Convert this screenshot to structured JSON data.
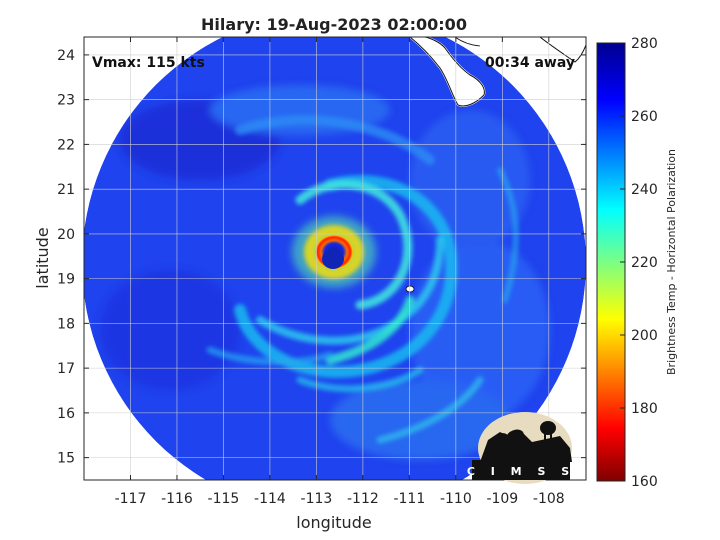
{
  "title": "Hilary: 19-Aug-2023 02:00:00",
  "vmax_label": "Vmax: 115 kts",
  "time_label": "00:34 away",
  "xlabel": "longitude",
  "ylabel": "latitude",
  "colorbar_label": "Brightness Temp - Horizontal Polarization",
  "logo_text": "CIMSS",
  "chart_data": {
    "type": "heatmap",
    "title": "Hilary: 19-Aug-2023 02:00:00",
    "xlabel": "longitude",
    "ylabel": "latitude",
    "xlim": [
      -118,
      -107.2
    ],
    "ylim": [
      14.5,
      24.4
    ],
    "x_ticks": [
      -117,
      -116,
      -115,
      -114,
      -113,
      -112,
      -111,
      -110,
      -109,
      -108
    ],
    "y_ticks": [
      15,
      16,
      17,
      18,
      19,
      20,
      21,
      22,
      23,
      24
    ],
    "grid": true,
    "colorbar": {
      "label": "Brightness Temp - Horizontal Polarization",
      "range": [
        160,
        280
      ],
      "ticks": [
        160,
        180,
        200,
        220,
        240,
        260,
        280
      ],
      "colormap": "jet"
    },
    "storm": {
      "name": "Hilary",
      "datetime": "19-Aug-2023 02:00:00",
      "vmax_kts": 115,
      "center_lon": -112.6,
      "center_lat": 19.5
    }
  }
}
